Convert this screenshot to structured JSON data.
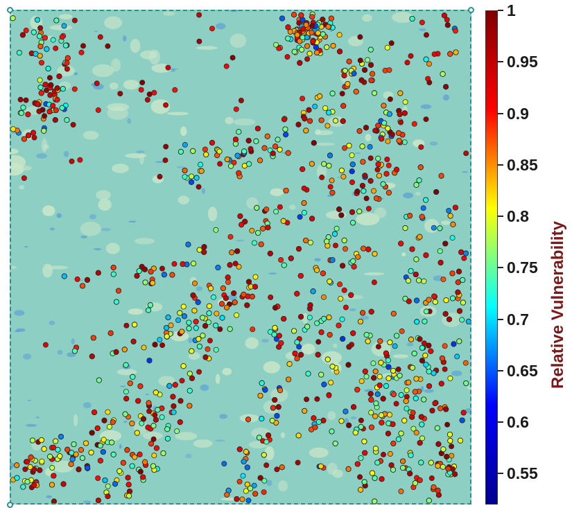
{
  "colorbar": {
    "title": "Relative Vulnerability",
    "ticks": [
      "1",
      "0.95",
      "0.9",
      "0.85",
      "0.8",
      "0.75",
      "0.7",
      "0.65",
      "0.6",
      "0.55"
    ],
    "tick_values": [
      1,
      0.95,
      0.9,
      0.85,
      0.8,
      0.75,
      0.7,
      0.65,
      0.6,
      0.55
    ],
    "range": [
      0.52,
      1.0
    ],
    "colormap": "jet",
    "colors": [
      "#00008f",
      "#0000ff",
      "#00ffff",
      "#ffff00",
      "#ff0000",
      "#800000"
    ]
  },
  "map": {
    "background_color": "#8ecfc4",
    "light_patch_color": "#c9e6c8",
    "water_color": "#5a9fd4",
    "marker_outline": "#2b2b2b",
    "selection_border_color": "#2a8f8f"
  }
}
